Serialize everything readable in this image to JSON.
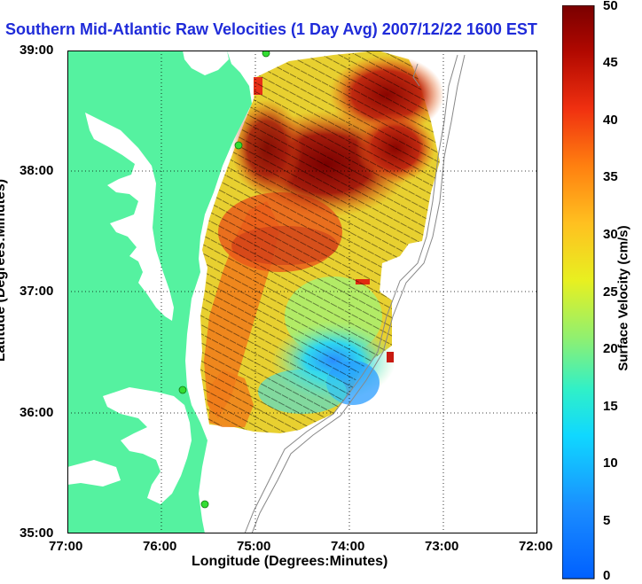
{
  "title": "Southern Mid-Atlantic Raw Velocities (1 Day Avg) 2007/12/22 1600 EST",
  "xlabel": "Longitude (Degrees:Minutes)",
  "ylabel": "Latitude (Degrees:Minutes)",
  "colorbar_label": "Surface Velocity (cm/s)",
  "x_ticks": [
    "77:00",
    "76:00",
    "75:00",
    "74:00",
    "73:00",
    "72:00"
  ],
  "y_ticks": [
    "39:00",
    "38:00",
    "37:00",
    "36:00",
    "35:00"
  ],
  "colorbar_ticks": [
    "0",
    "5",
    "10",
    "15",
    "20",
    "25",
    "30",
    "35",
    "40",
    "45",
    "50"
  ],
  "colors": {
    "land": "#55f2a0",
    "title": "#1f2bd9",
    "station": "#33dd33"
  },
  "chart_data": {
    "type": "heatmap",
    "title": "Southern Mid-Atlantic Raw Velocities (1 Day Avg) 2007/12/22 1600 EST",
    "xlabel": "Longitude (Degrees:Minutes)",
    "ylabel": "Latitude (Degrees:Minutes)",
    "xlim": [
      -77,
      -72
    ],
    "ylim": [
      35,
      39
    ],
    "colorbar_range": [
      0,
      50
    ],
    "colorbar_unit": "cm/s",
    "grid": true,
    "stations": [
      {
        "lon": -74.9,
        "lat": 39.0
      },
      {
        "lon": -75.2,
        "lat": 38.2
      },
      {
        "lon": -75.7,
        "lat": 36.2
      },
      {
        "lon": -75.5,
        "lat": 35.25
      }
    ]
  }
}
